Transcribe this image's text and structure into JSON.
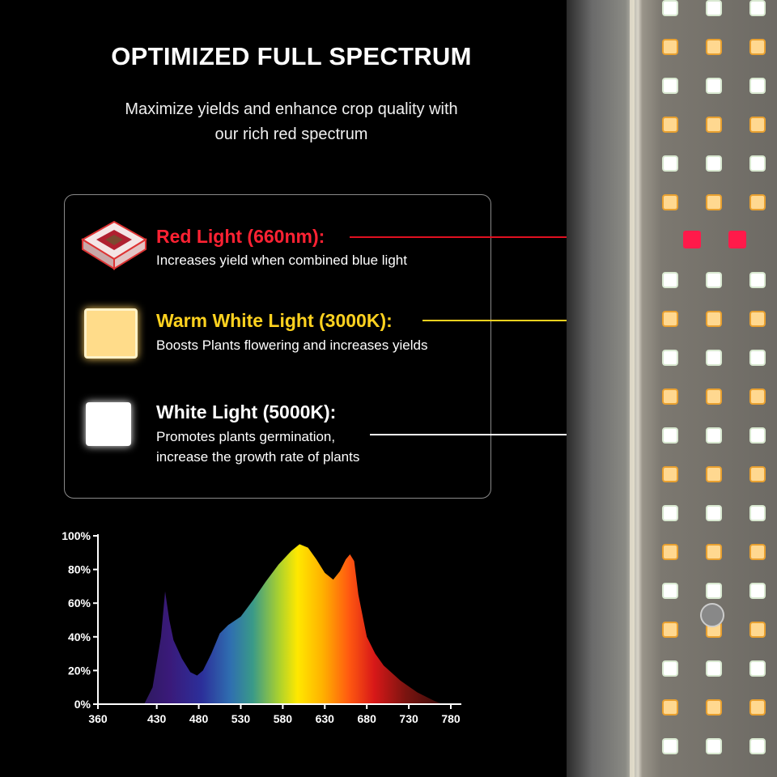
{
  "header": {
    "title": "OPTIMIZED FULL SPECTRUM",
    "subtitle_line1": "Maximize yields and enhance crop quality with",
    "subtitle_line2": "our rich red spectrum"
  },
  "legend_items": [
    {
      "title": "Red Light (660nm):",
      "desc_line1": "Increases yield when combined blue light",
      "desc_line2": "",
      "color": "#ff2233",
      "icon": "red-led-chip-icon"
    },
    {
      "title": "Warm White Light (3000K):",
      "desc_line1": "Boosts Plants flowering and increases yields",
      "desc_line2": "",
      "color": "#ffd21f",
      "icon": "warm-white-led-chip-icon"
    },
    {
      "title": "White Light (5000K):",
      "desc_line1": "Promotes plants germination,",
      "desc_line2": "increase the growth rate of plants",
      "color": "#ffffff",
      "icon": "white-led-chip-icon"
    }
  ],
  "chart_data": {
    "type": "area",
    "xlabel": "",
    "ylabel": "",
    "xlim": [
      360,
      780
    ],
    "ylim": [
      0,
      100
    ],
    "x_ticks": [
      360,
      430,
      480,
      530,
      580,
      630,
      680,
      730,
      780
    ],
    "y_ticks": [
      "0%",
      "20%",
      "40%",
      "60%",
      "80%",
      "100%"
    ],
    "x": [
      415,
      425,
      435,
      440,
      445,
      450,
      460,
      470,
      478,
      485,
      495,
      505,
      515,
      530,
      545,
      560,
      575,
      590,
      600,
      610,
      620,
      630,
      640,
      648,
      655,
      660,
      665,
      670,
      680,
      690,
      700,
      720,
      740,
      760,
      770
    ],
    "values": [
      0,
      10,
      40,
      67,
      50,
      38,
      27,
      19,
      17,
      20,
      30,
      42,
      47,
      52,
      62,
      73,
      83,
      91,
      95,
      93,
      86,
      78,
      74,
      79,
      86,
      89,
      85,
      65,
      40,
      30,
      23,
      14,
      7,
      2,
      0
    ]
  }
}
